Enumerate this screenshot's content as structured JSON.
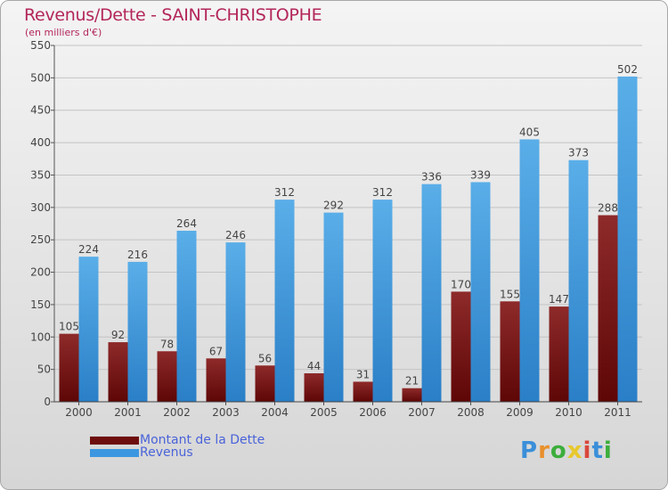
{
  "header": {
    "title": "Revenus/Dette - SAINT-CHRISTOPHE",
    "subtitle": "(en milliers d'€)"
  },
  "logo": {
    "text": "Proxiti",
    "letter_colors": [
      "#3b8fd9",
      "#e8902c",
      "#3cae3c",
      "#e8c82c",
      "#d9473b",
      "#3b8fd9",
      "#3cae3c"
    ]
  },
  "legend": {
    "items": [
      {
        "label": "Montant de la Dette",
        "color": "#7b1515"
      },
      {
        "label": "Revenus",
        "color": "#3d97e0"
      }
    ]
  },
  "chart_data": {
    "type": "bar",
    "title": "Revenus/Dette - SAINT-CHRISTOPHE",
    "subtitle": "(en milliers d'€)",
    "categories": [
      "2000",
      "2001",
      "2002",
      "2003",
      "2004",
      "2005",
      "2006",
      "2007",
      "2008",
      "2009",
      "2010",
      "2011"
    ],
    "series": [
      {
        "name": "Montant de la Dette",
        "color": "#7b1515",
        "values": [
          105,
          92,
          78,
          67,
          56,
          44,
          31,
          21,
          170,
          155,
          147,
          288
        ]
      },
      {
        "name": "Revenus",
        "color": "#3d97e0",
        "values": [
          224,
          216,
          264,
          246,
          312,
          292,
          312,
          336,
          339,
          405,
          373,
          502
        ]
      }
    ],
    "ylim": [
      0,
      550
    ],
    "yticks": [
      0,
      50,
      100,
      150,
      200,
      250,
      300,
      350,
      400,
      450,
      500,
      550
    ],
    "grid": true,
    "legend_position": "bottom-left"
  }
}
